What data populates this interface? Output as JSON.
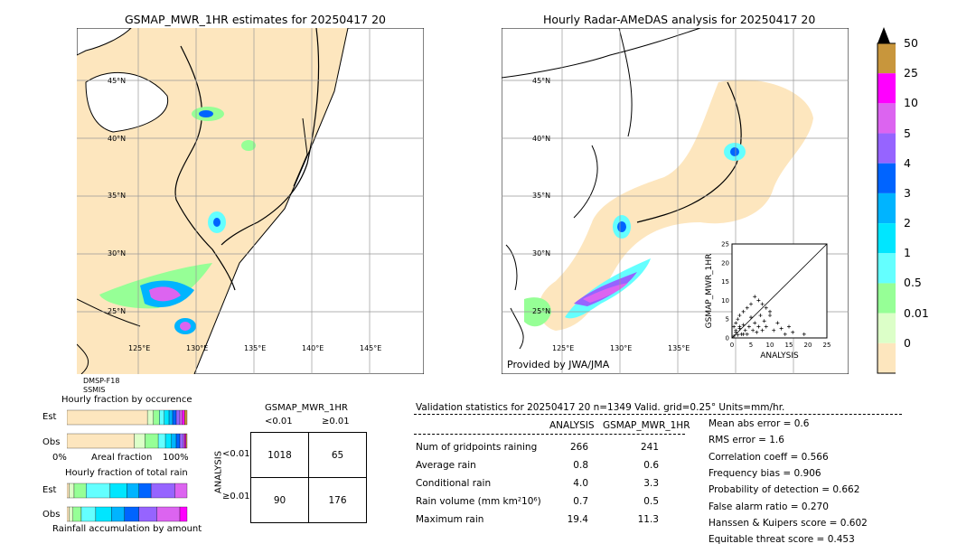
{
  "left_map": {
    "title": "GSMAP_MWR_1HR estimates for 20250417 20",
    "lat_labels": [
      "45°N",
      "40°N",
      "35°N",
      "30°N",
      "25°N"
    ],
    "lon_labels": [
      "125°E",
      "130°E",
      "135°E",
      "140°E",
      "145°E"
    ],
    "sensor_line1": "DMSP-F18",
    "sensor_line2": "SSMIS"
  },
  "right_map": {
    "title": "Hourly Radar-AMeDAS analysis for 20250417 20",
    "lat_labels": [
      "45°N",
      "40°N",
      "35°N",
      "30°N",
      "25°N"
    ],
    "lon_labels": [
      "125°E",
      "130°E",
      "135°E"
    ],
    "provider": "Provided by JWA/JMA"
  },
  "colorbar": {
    "labels": [
      "50",
      "25",
      "10",
      "5",
      "4",
      "3",
      "2",
      "1",
      "0.5",
      "0.01",
      "0"
    ],
    "colors": [
      "#c8963c",
      "#ff00ff",
      "#dc64f0",
      "#9664ff",
      "#0064ff",
      "#00b4ff",
      "#00e6ff",
      "#64ffff",
      "#96ff96",
      "#dcffc8",
      "#fde6be"
    ]
  },
  "fraction_occurrence": {
    "title": "Hourly fraction by occurence",
    "row_labels": [
      "Est",
      "Obs"
    ],
    "axis_left": "0%",
    "axis_mid": "Areal fraction",
    "axis_right": "100%"
  },
  "fraction_total": {
    "title": "Hourly fraction of total rain",
    "row_labels": [
      "Est",
      "Obs"
    ],
    "axis_mid": "Rainfall accumulation by amount"
  },
  "contingency": {
    "title": "GSMAP_MWR_1HR",
    "col_labels": [
      "<0.01",
      "≥0.01"
    ],
    "row_axis": "ANALYSIS",
    "row_labels": [
      "<0.01",
      "≥0.01"
    ],
    "cells": [
      [
        "1018",
        "65"
      ],
      [
        "90",
        "176"
      ]
    ]
  },
  "validation": {
    "header": "Validation statistics for 20250417 20  n=1349 Valid. grid=0.25° Units=mm/hr.",
    "col1": "ANALYSIS",
    "col2": "GSMAP_MWR_1HR",
    "rows": [
      {
        "label": "Num of gridpoints raining",
        "a": "266",
        "b": "241"
      },
      {
        "label": "Average rain",
        "a": "0.8",
        "b": "0.6"
      },
      {
        "label": "Conditional rain",
        "a": "4.0",
        "b": "3.3"
      },
      {
        "label": "Rain volume (mm km²10⁶)",
        "a": "0.7",
        "b": "0.5"
      },
      {
        "label": "Maximum rain",
        "a": "19.4",
        "b": "11.3"
      }
    ],
    "scores": [
      "Mean abs error =    0.6",
      "RMS error =    1.6",
      "Correlation coeff =  0.566",
      "Frequency bias =  0.906",
      "Probability of detection =  0.662",
      "False alarm ratio =  0.270",
      "Hanssen & Kuipers score =  0.602",
      "Equitable threat score =  0.453"
    ]
  },
  "chart_data": [
    {
      "type": "scatter",
      "xlabel": "ANALYSIS",
      "ylabel": "GSMAP_MWR_1HR",
      "xlim": [
        0,
        25
      ],
      "ylim": [
        0,
        25
      ],
      "ticks": [
        0,
        5,
        10,
        15,
        20,
        25
      ],
      "points": [
        [
          0.5,
          0.5
        ],
        [
          1,
          1.5
        ],
        [
          1.5,
          0.8
        ],
        [
          2,
          2.5
        ],
        [
          2.5,
          1
        ],
        [
          3,
          3.5
        ],
        [
          3.5,
          2
        ],
        [
          4,
          1
        ],
        [
          4.5,
          3
        ],
        [
          5,
          5.5
        ],
        [
          5.5,
          2
        ],
        [
          6,
          4
        ],
        [
          6.5,
          1.5
        ],
        [
          7,
          3
        ],
        [
          7.5,
          6
        ],
        [
          8,
          2
        ],
        [
          8.5,
          4.5
        ],
        [
          9,
          3
        ],
        [
          10,
          6
        ],
        [
          11,
          2
        ],
        [
          12,
          4
        ],
        [
          13,
          2.5
        ],
        [
          14,
          1
        ],
        [
          15,
          3
        ],
        [
          16,
          1.5
        ],
        [
          19,
          1
        ],
        [
          1,
          4
        ],
        [
          2,
          6
        ],
        [
          3,
          7
        ],
        [
          4,
          8
        ],
        [
          5,
          9
        ],
        [
          6,
          11
        ],
        [
          7,
          10
        ],
        [
          9,
          8
        ],
        [
          10,
          7
        ],
        [
          8,
          9
        ],
        [
          1,
          2
        ],
        [
          2,
          3
        ],
        [
          3,
          1
        ],
        [
          0.5,
          3
        ],
        [
          1.5,
          5
        ]
      ]
    },
    {
      "type": "bar",
      "title": "Hourly fraction by occurence",
      "series": [
        {
          "name": "Est",
          "values": [
            0.67,
            0.05,
            0.05,
            0.04,
            0.04,
            0.03,
            0.03,
            0.03,
            0.02,
            0.02,
            0.02
          ]
        },
        {
          "name": "Obs",
          "values": [
            0.56,
            0.09,
            0.11,
            0.06,
            0.05,
            0.04,
            0.03,
            0.03,
            0.01,
            0.01,
            0.01
          ]
        }
      ]
    },
    {
      "type": "bar",
      "title": "Hourly fraction of total rain",
      "series": [
        {
          "name": "Est",
          "values": [
            0.02,
            0.04,
            0.1,
            0.2,
            0.14,
            0.1,
            0.1,
            0.2,
            0.1,
            0,
            0
          ]
        },
        {
          "name": "Obs",
          "values": [
            0.02,
            0.03,
            0.07,
            0.12,
            0.13,
            0.11,
            0.12,
            0.15,
            0.19,
            0.06,
            0
          ]
        }
      ]
    }
  ]
}
